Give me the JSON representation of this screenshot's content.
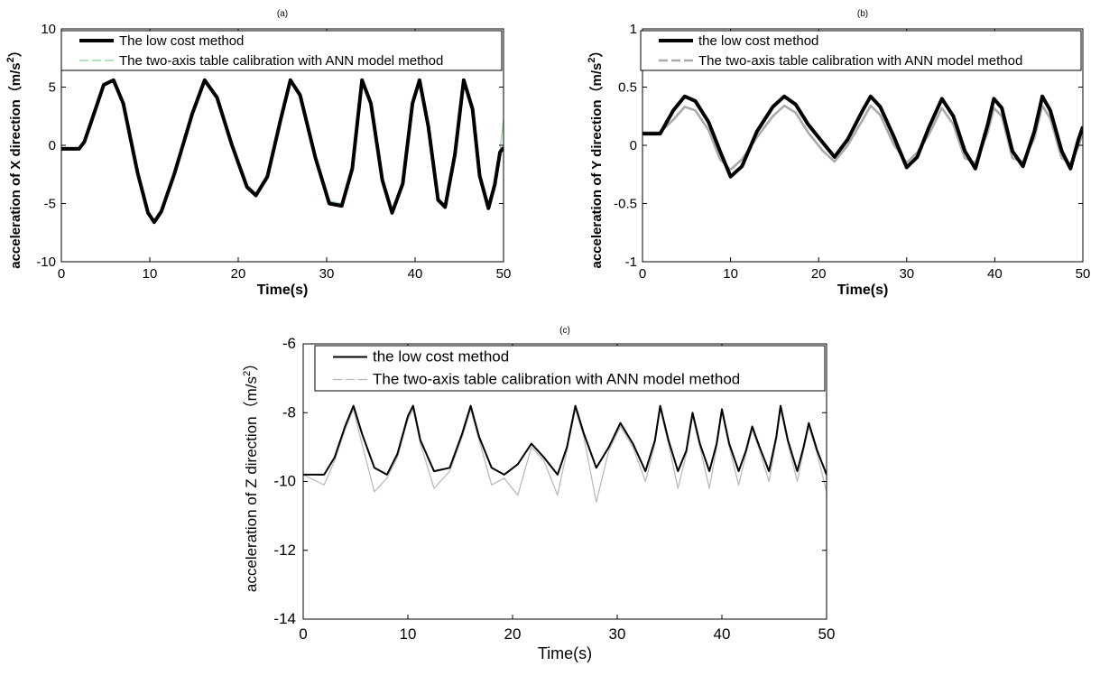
{
  "chart_data": [
    {
      "type": "line",
      "panel_label": "(a)",
      "xlabel": "Time(s)",
      "ylabel_prefix": "acceleration of  X direction（m/s",
      "ylabel_sup": "2",
      "ylabel_suffix": "）",
      "xlim": [
        0,
        50
      ],
      "ylim": [
        -10,
        10
      ],
      "xticks": [
        0,
        10,
        20,
        30,
        40,
        50
      ],
      "yticks": [
        -10,
        -5,
        0,
        5,
        10
      ],
      "grid": false,
      "legend_position": "top-right",
      "series": [
        {
          "name": "The low cost method",
          "color": "#000000",
          "x": [
            0,
            2,
            2.6,
            3.5,
            4.8,
            5.9,
            7,
            8.6,
            9.8,
            10.5,
            11.3,
            12.8,
            14.8,
            16.2,
            17.6,
            19.3,
            21,
            22,
            23.3,
            24.8,
            25.9,
            27,
            28.7,
            30.3,
            31.7,
            32.9,
            34,
            35,
            36.3,
            37.4,
            38.6,
            39.7,
            40.5,
            41.5,
            42.6,
            43.4,
            44.5,
            45.5,
            46.5,
            47.3,
            48.3,
            49,
            49.6,
            50
          ],
          "values": [
            -0.3,
            -0.3,
            0.3,
            2.3,
            5.2,
            5.6,
            3.6,
            -2.3,
            -5.8,
            -6.6,
            -5.7,
            -2.4,
            2.7,
            5.6,
            4.1,
            0,
            -3.6,
            -4.3,
            -2.7,
            2.2,
            5.6,
            4.3,
            -1,
            -5,
            -5.2,
            -2,
            5.6,
            3.6,
            -3,
            -5.8,
            -3.3,
            3.6,
            5.6,
            1.6,
            -4.7,
            -5.3,
            -0.8,
            5.6,
            3.1,
            -2.6,
            -5.4,
            -3.4,
            -0.6,
            -0.2
          ]
        },
        {
          "name": "The two-axis table calibration with ANN model method",
          "color": "#9ed8a6",
          "x": [
            0,
            2,
            2.6,
            3.5,
            4.8,
            5.9,
            7,
            8.6,
            9.8,
            10.5,
            11.3,
            12.8,
            14.8,
            16.2,
            17.6,
            19.3,
            21,
            22,
            23.3,
            24.8,
            25.9,
            27,
            28.7,
            30.3,
            31.7,
            32.9,
            34,
            35,
            36.3,
            37.4,
            38.6,
            39.7,
            40.5,
            41.5,
            42.6,
            43.4,
            44.5,
            45.5,
            46.5,
            47.3,
            48.3,
            49,
            49.6,
            50
          ],
          "values": [
            -0.2,
            -0.2,
            0.4,
            2.5,
            5.3,
            5.7,
            3.8,
            -2.1,
            -5.7,
            -6.4,
            -5.5,
            -2.2,
            2.9,
            5.7,
            4.3,
            0.2,
            -3.4,
            -4.1,
            -2.5,
            2.4,
            5.7,
            4.5,
            -0.8,
            -4.8,
            -5,
            -1.8,
            5.7,
            3.8,
            -2.8,
            -5.6,
            -3.1,
            3.8,
            5.7,
            1.8,
            -4.5,
            -5.1,
            -0.6,
            5.7,
            3.3,
            -2.4,
            -5.2,
            -3.2,
            -0.4,
            2.2
          ]
        }
      ]
    },
    {
      "type": "line",
      "panel_label": "(b)",
      "xlabel": "Time(s)",
      "ylabel_prefix": "acceleration of  Y direction（m/s",
      "ylabel_sup": "2",
      "ylabel_suffix": "）",
      "xlim": [
        0,
        50
      ],
      "ylim": [
        -1,
        1
      ],
      "xticks": [
        0,
        10,
        20,
        30,
        40,
        50
      ],
      "yticks": [
        -1,
        -0.5,
        0,
        0.5,
        1
      ],
      "grid": false,
      "legend_position": "top-right",
      "series": [
        {
          "name": "the low cost method",
          "color": "#000000",
          "x": [
            0,
            2,
            3.5,
            4.8,
            6,
            7.5,
            8.8,
            10,
            11.3,
            13,
            14.8,
            16.1,
            17.4,
            18.8,
            20.5,
            21.8,
            23.3,
            25,
            25.9,
            27,
            28.5,
            30,
            31.2,
            32.5,
            34,
            35.3,
            36.6,
            37.8,
            39.2,
            39.9,
            40.8,
            42,
            43.2,
            44.5,
            45.4,
            46.3,
            47.6,
            48.6,
            49.5,
            50
          ],
          "values": [
            0.1,
            0.1,
            0.3,
            0.42,
            0.38,
            0.2,
            -0.05,
            -0.27,
            -0.18,
            0.12,
            0.33,
            0.42,
            0.35,
            0.18,
            0.02,
            -0.1,
            0.05,
            0.3,
            0.42,
            0.33,
            0.08,
            -0.19,
            -0.1,
            0.15,
            0.4,
            0.25,
            -0.05,
            -0.2,
            0.18,
            0.4,
            0.32,
            -0.05,
            -0.18,
            0.12,
            0.42,
            0.3,
            -0.05,
            -0.2,
            0.05,
            0.16
          ]
        },
        {
          "name": "The two-axis table calibration with ANN model method",
          "color": "#aaaaaa",
          "x": [
            0,
            2,
            3.5,
            4.8,
            6,
            7.5,
            8.8,
            10,
            11.3,
            13,
            14.8,
            16.1,
            17.4,
            18.8,
            20.5,
            21.8,
            23.3,
            25,
            25.9,
            27,
            28.5,
            30,
            31.2,
            32.5,
            34,
            35.3,
            36.6,
            37.8,
            39.2,
            39.9,
            40.8,
            42,
            43.2,
            44.5,
            45.4,
            46.3,
            47.6,
            48.6,
            49.5,
            50
          ],
          "values": [
            0.11,
            0.11,
            0.22,
            0.33,
            0.3,
            0.13,
            -0.12,
            -0.21,
            -0.12,
            0.07,
            0.25,
            0.34,
            0.28,
            0.11,
            -0.05,
            -0.14,
            0,
            0.22,
            0.34,
            0.26,
            0.01,
            -0.15,
            -0.06,
            0.09,
            0.32,
            0.18,
            -0.11,
            -0.15,
            0.11,
            0.32,
            0.25,
            -0.11,
            -0.14,
            0.06,
            0.34,
            0.23,
            -0.11,
            -0.16,
            -0.01,
            0.1
          ]
        }
      ]
    },
    {
      "type": "line",
      "panel_label": "(c)",
      "xlabel": "Time(s)",
      "ylabel_prefix": "acceleration of  Z direction（m/s",
      "ylabel_sup": "2",
      "ylabel_suffix": "）",
      "xlim": [
        0,
        50
      ],
      "ylim": [
        -14,
        -6
      ],
      "xticks": [
        0,
        10,
        20,
        30,
        40,
        50
      ],
      "yticks": [
        -14,
        -12,
        -10,
        -8,
        -6
      ],
      "grid": false,
      "legend_position": "top-right",
      "series": [
        {
          "name": "the low cost method",
          "color": "#000000",
          "x": [
            0,
            2,
            3,
            4,
            4.8,
            5.6,
            6.8,
            8,
            9,
            10,
            10.5,
            11.2,
            12.5,
            14,
            15.2,
            16,
            16.8,
            18,
            19.2,
            20.5,
            21.8,
            23,
            24.3,
            25.2,
            26,
            26.8,
            28,
            29.2,
            30.3,
            31.5,
            32.7,
            33.6,
            34.1,
            34.9,
            35.8,
            36.6,
            37.2,
            37.9,
            38.8,
            39.5,
            40,
            40.7,
            41.6,
            42.3,
            42.9,
            43.6,
            44.5,
            45.2,
            45.6,
            46.3,
            47.2,
            47.8,
            48.3,
            49.1,
            50
          ],
          "values": [
            -9.8,
            -9.8,
            -9.3,
            -8.4,
            -7.8,
            -8.6,
            -9.6,
            -9.8,
            -9.2,
            -8.1,
            -7.8,
            -8.8,
            -9.7,
            -9.6,
            -8.6,
            -7.8,
            -8.7,
            -9.6,
            -9.8,
            -9.5,
            -8.9,
            -9.3,
            -9.8,
            -9,
            -7.8,
            -8.6,
            -9.6,
            -9,
            -8.3,
            -8.9,
            -9.7,
            -8.8,
            -7.8,
            -8.8,
            -9.7,
            -9.1,
            -8,
            -8.9,
            -9.7,
            -8.9,
            -7.9,
            -8.9,
            -9.7,
            -9.1,
            -8.4,
            -9,
            -9.7,
            -8.7,
            -7.8,
            -8.8,
            -9.7,
            -9,
            -8.3,
            -9.1,
            -9.8
          ]
        },
        {
          "name": "The two-axis table calibration with ANN model method",
          "color": "#bbbbbb",
          "x": [
            0,
            2,
            3,
            4,
            4.8,
            5.6,
            6.8,
            8,
            9,
            10,
            10.5,
            11.2,
            12.5,
            14,
            15.2,
            16,
            16.8,
            18,
            19.2,
            20.5,
            21.8,
            23,
            24.3,
            25.2,
            26,
            26.8,
            28,
            29.2,
            30.3,
            31.5,
            32.7,
            33.6,
            34.1,
            34.9,
            35.8,
            36.6,
            37.2,
            37.9,
            38.8,
            39.5,
            40,
            40.7,
            41.6,
            42.3,
            42.9,
            43.6,
            44.5,
            45.2,
            45.6,
            46.3,
            47.2,
            47.8,
            48.3,
            49.1,
            50
          ],
          "values": [
            -9.8,
            -10.1,
            -9.4,
            -8.5,
            -7.9,
            -8.9,
            -10.3,
            -9.9,
            -9.3,
            -8.2,
            -7.9,
            -8.9,
            -10.2,
            -9.7,
            -8.7,
            -7.9,
            -8.8,
            -10.1,
            -9.9,
            -10.4,
            -9,
            -9.4,
            -10.4,
            -9.1,
            -7.9,
            -8.7,
            -10.6,
            -9.1,
            -8.4,
            -9,
            -10,
            -8.9,
            -7.9,
            -8.9,
            -10.2,
            -9.2,
            -8.1,
            -9,
            -10.2,
            -9,
            -8,
            -9,
            -10.1,
            -9.2,
            -8.5,
            -9.1,
            -10,
            -8.8,
            -7.9,
            -8.9,
            -10,
            -9.1,
            -8.4,
            -9.2,
            -10.3
          ]
        }
      ]
    }
  ]
}
